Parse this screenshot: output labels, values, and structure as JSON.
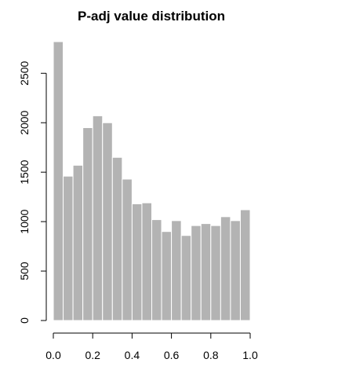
{
  "chart_data": {
    "type": "bar",
    "title": "P-adj value distribution",
    "xlabel": "",
    "ylabel": "",
    "bin_edges": [
      0.0,
      0.05,
      0.1,
      0.15,
      0.2,
      0.25,
      0.3,
      0.35,
      0.4,
      0.45,
      0.5,
      0.55,
      0.6,
      0.65,
      0.7,
      0.75,
      0.8,
      0.85,
      0.9,
      0.95,
      1.0
    ],
    "values": [
      2820,
      1460,
      1570,
      1950,
      2070,
      2000,
      1650,
      1430,
      1180,
      1190,
      1020,
      900,
      1010,
      860,
      960,
      980,
      960,
      1050,
      1010,
      1120
    ],
    "xlim": [
      0,
      1
    ],
    "ylim": [
      0,
      2820
    ],
    "x_ticks": [
      0.0,
      0.2,
      0.4,
      0.6,
      0.8,
      1.0
    ],
    "x_tick_labels": [
      "0.0",
      "0.2",
      "0.4",
      "0.6",
      "0.8",
      "1.0"
    ],
    "y_ticks": [
      0,
      500,
      1000,
      1500,
      2000,
      2500
    ],
    "y_tick_labels": [
      "0",
      "500",
      "1000",
      "1500",
      "2000",
      "2500"
    ],
    "bar_color": "#b3b3b3",
    "bar_border_color": "#ffffff",
    "grid": false,
    "legend": false
  }
}
